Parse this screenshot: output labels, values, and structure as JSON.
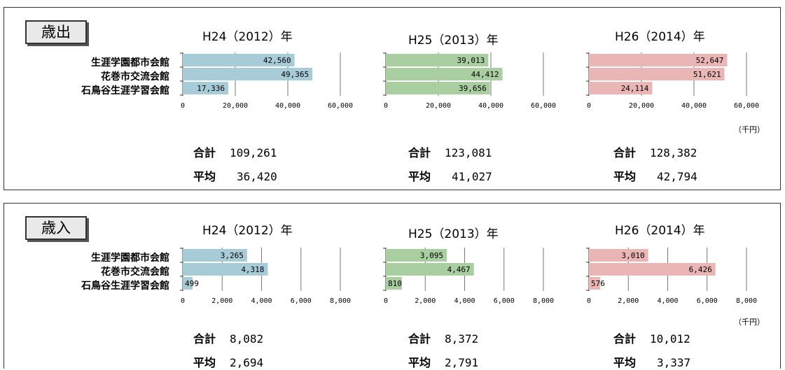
{
  "panels": [
    {
      "label": "歳出",
      "categories": [
        "生涯学園都市会館",
        "花巻市交流会館",
        "石鳥谷生涯学習会館"
      ],
      "unit": "（千円）",
      "xmax": 60000,
      "ticks": [
        "0",
        "20,000",
        "40,000",
        "60,000"
      ],
      "tick_values": [
        0,
        20000,
        40000,
        60000
      ],
      "years": [
        {
          "title": "H24（2012）年",
          "values": [
            42560,
            49365,
            17336
          ],
          "value_labels": [
            "42,560",
            "49,365",
            "17,336"
          ],
          "sum_label": "合計",
          "sum": "109,261",
          "avg_label": "平均",
          "avg": "36,420",
          "color": "#a8ccd7"
        },
        {
          "title": "H25（2013）年",
          "values": [
            39013,
            44412,
            39656
          ],
          "value_labels": [
            "39,013",
            "44,412",
            "39,656"
          ],
          "sum_label": "合計",
          "sum": "123,081",
          "avg_label": "平均",
          "avg": "41,027",
          "color": "#a9cfa0"
        },
        {
          "title": "H26（2014）年",
          "values": [
            52647,
            51621,
            24114
          ],
          "value_labels": [
            "52,647",
            "51,621",
            "24,114"
          ],
          "sum_label": "合計",
          "sum": "128,382",
          "avg_label": "平均",
          "avg": "42,794",
          "color": "#eab5b5"
        }
      ]
    },
    {
      "label": "歳入",
      "categories": [
        "生涯学園都市会館",
        "花巻市交流会館",
        "石鳥谷生涯学習会館"
      ],
      "unit": "（千円）",
      "xmax": 8000,
      "ticks": [
        "0",
        "2,000",
        "4,000",
        "6,000",
        "8,000"
      ],
      "tick_values": [
        0,
        2000,
        4000,
        6000,
        8000
      ],
      "years": [
        {
          "title": "H24（2012）年",
          "values": [
            3265,
            4318,
            499
          ],
          "value_labels": [
            "3,265",
            "4,318",
            "499"
          ],
          "sum_label": "合計",
          "sum": "8,082",
          "avg_label": "平均",
          "avg": "2,694",
          "color": "#a8ccd7"
        },
        {
          "title": "H25（2013）年",
          "values": [
            3095,
            4467,
            810
          ],
          "value_labels": [
            "3,095",
            "4,467",
            "810"
          ],
          "sum_label": "合計",
          "sum": "8,372",
          "avg_label": "平均",
          "avg": "2,791",
          "color": "#a9cfa0"
        },
        {
          "title": "H26（2014）年",
          "values": [
            3010,
            6426,
            576
          ],
          "value_labels": [
            "3,010",
            "6,426",
            "576"
          ],
          "sum_label": "合計",
          "sum": "10,012",
          "avg_label": "平均",
          "avg": "3,337",
          "color": "#eab5b5"
        }
      ]
    }
  ],
  "chart_data": [
    {
      "type": "bar",
      "title": "歳出 H24（2012）年",
      "categories": [
        "生涯学園都市会館",
        "花巻市交流会館",
        "石鳥谷生涯学習会館"
      ],
      "values": [
        42560,
        49365,
        17336
      ],
      "xlim": [
        0,
        60000
      ],
      "unit": "千円"
    },
    {
      "type": "bar",
      "title": "歳出 H25（2013）年",
      "categories": [
        "生涯学園都市会館",
        "花巻市交流会館",
        "石鳥谷生涯学習会館"
      ],
      "values": [
        39013,
        44412,
        39656
      ],
      "xlim": [
        0,
        60000
      ],
      "unit": "千円"
    },
    {
      "type": "bar",
      "title": "歳出 H26（2014）年",
      "categories": [
        "生涯学園都市会館",
        "花巻市交流会館",
        "石鳥谷生涯学習会館"
      ],
      "values": [
        52647,
        51621,
        24114
      ],
      "xlim": [
        0,
        60000
      ],
      "unit": "千円"
    },
    {
      "type": "bar",
      "title": "歳入 H24（2012）年",
      "categories": [
        "生涯学園都市会館",
        "花巻市交流会館",
        "石鳥谷生涯学習会館"
      ],
      "values": [
        3265,
        4318,
        499
      ],
      "xlim": [
        0,
        8000
      ],
      "unit": "千円"
    },
    {
      "type": "bar",
      "title": "歳入 H25（2013）年",
      "categories": [
        "生涯学園都市会館",
        "花巻市交流会館",
        "石鳥谷生涯学習会館"
      ],
      "values": [
        3095,
        4467,
        810
      ],
      "xlim": [
        0,
        8000
      ],
      "unit": "千円"
    },
    {
      "type": "bar",
      "title": "歳入 H26（2014）年",
      "categories": [
        "生涯学園都市会館",
        "花巻市交流会館",
        "石鳥谷生涯学習会館"
      ],
      "values": [
        3010,
        6426,
        576
      ],
      "xlim": [
        0,
        8000
      ],
      "unit": "千円"
    }
  ]
}
